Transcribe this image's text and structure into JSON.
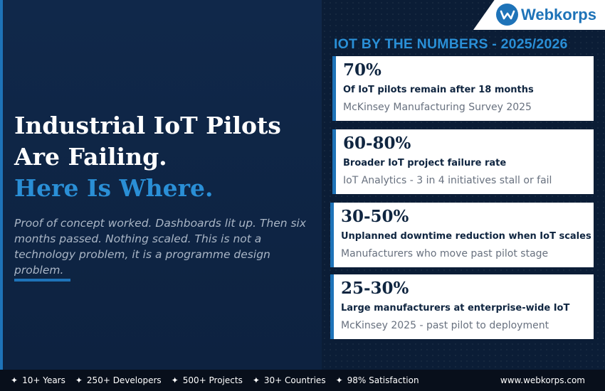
{
  "brand": {
    "name": "Webkorps",
    "url": "www.webkorps.com",
    "accent_color": "#1e73b8",
    "navy_color": "#0f2540",
    "logo_icon": "w-circle-logo-icon"
  },
  "hero": {
    "headline_line1": "Industrial IoT Pilots",
    "headline_line2": "Are Failing.",
    "headline_accent": "Here Is Where.",
    "subtext": "Proof of concept worked. Dashboards lit up. Then six months passed. Nothing scaled. This is not a technology problem, it is a programme design problem."
  },
  "stats": {
    "title": "IOT BY THE NUMBERS - 2025/2026",
    "cards": [
      {
        "value": "70%",
        "label": "Of IoT pilots remain after 18 months",
        "source": "McKinsey Manufacturing Survey 2025"
      },
      {
        "value": "60-80%",
        "label": "Broader IoT project failure rate",
        "source": "IoT Analytics - 3 in 4 initiatives stall or fail"
      },
      {
        "value": "30-50%",
        "label": "Unplanned downtime reduction when IoT scales",
        "source": "Manufacturers who move past pilot stage"
      },
      {
        "value": "25-30%",
        "label": "Large manufacturers at enterprise-wide IoT",
        "source": "McKinsey 2025 - past pilot to deployment"
      }
    ]
  },
  "footer": {
    "star_icon": "four-point-star-icon",
    "items": [
      "10+ Years",
      "250+ Developers",
      "500+ Projects",
      "30+ Countries",
      "98% Satisfaction"
    ],
    "url": "www.webkorps.com"
  }
}
